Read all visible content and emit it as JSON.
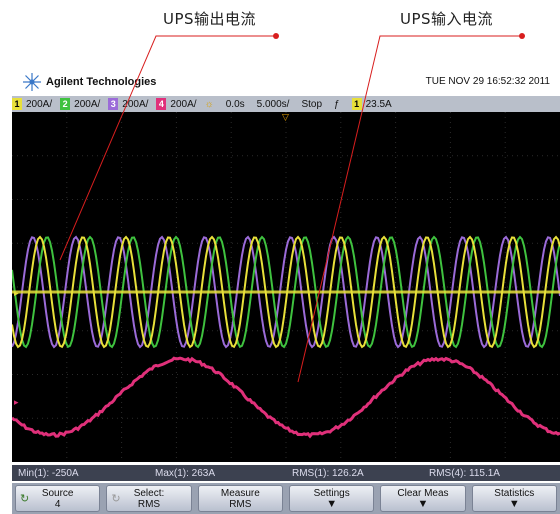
{
  "annotations": {
    "output_current": "UPS输出电流",
    "input_current": "UPS输入电流"
  },
  "header": {
    "brand": "Agilent Technologies",
    "datetime": "TUE NOV 29 16:52:32 2011"
  },
  "channels": [
    {
      "num": "1",
      "scale": "200A/",
      "color": "#e8e03a"
    },
    {
      "num": "2",
      "scale": "200A/",
      "color": "#3fc23f"
    },
    {
      "num": "3",
      "scale": "200A/",
      "color": "#9b6bd8"
    },
    {
      "num": "4",
      "scale": "200A/",
      "color": "#e0307a"
    }
  ],
  "timebase": {
    "delay": "0.0s",
    "scale": "5.000s/",
    "run_state": "Stop",
    "trigger_channel": "1",
    "trigger_level": "23.5A"
  },
  "measurements": [
    {
      "label": "Min(1): -250A"
    },
    {
      "label": "Max(1): 263A"
    },
    {
      "label": "RMS(1): 126.2A"
    },
    {
      "label": "RMS(4): 115.1A"
    }
  ],
  "softkeys": [
    {
      "line1": "Source",
      "line2": "4",
      "icon": "cycle-icon"
    },
    {
      "line1": "Select:",
      "line2": "RMS",
      "icon": "cycle-icon"
    },
    {
      "line1": "Measure",
      "line2": "RMS"
    },
    {
      "line1": "Settings",
      "arrow": "down-arrow-icon"
    },
    {
      "line1": "Clear Meas",
      "arrow": "down-arrow-icon"
    },
    {
      "line1": "Statistics",
      "arrow": "down-arrow-icon"
    }
  ],
  "colors": {
    "ch1": "#e8e03a",
    "ch2": "#3fc23f",
    "ch3": "#9b6bd8",
    "ch4": "#e0307a",
    "annotation_dot": "#d81e1e"
  }
}
